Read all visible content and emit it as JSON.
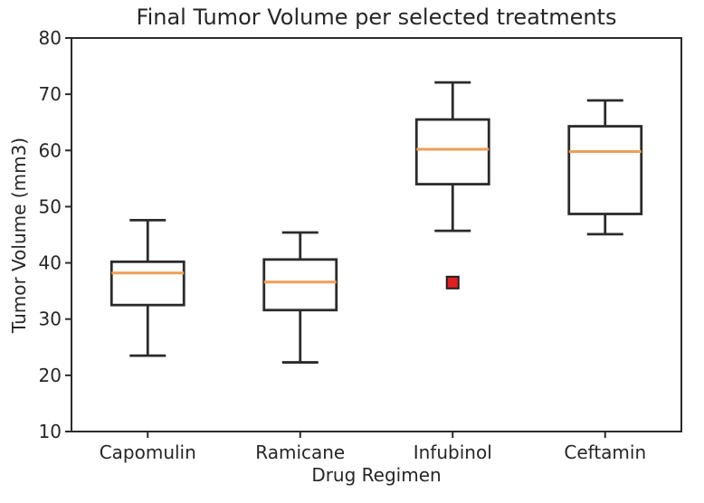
{
  "chart_data": {
    "type": "boxplot",
    "title": "Final Tumor Volume per selected treatments",
    "xlabel": "Drug Regimen",
    "ylabel": "Tumor Volume (mm3)",
    "categories": [
      "Capomulin",
      "Ramicane",
      "Infubinol",
      "Ceftamin"
    ],
    "ylim": [
      10,
      80
    ],
    "yticks": [
      10,
      20,
      30,
      40,
      50,
      60,
      70,
      80
    ],
    "grid": false,
    "legend": false,
    "series": [
      {
        "name": "Capomulin",
        "whisker_low": 23.5,
        "q1": 32.5,
        "median": 38.2,
        "q3": 40.2,
        "whisker_high": 47.6,
        "outliers": []
      },
      {
        "name": "Ramicane",
        "whisker_low": 22.3,
        "q1": 31.6,
        "median": 36.6,
        "q3": 40.6,
        "whisker_high": 45.4,
        "outliers": []
      },
      {
        "name": "Infubinol",
        "whisker_low": 45.7,
        "q1": 54.0,
        "median": 60.2,
        "q3": 65.5,
        "whisker_high": 72.1,
        "outliers": [
          36.5
        ]
      },
      {
        "name": "Ceftamin",
        "whisker_low": 45.1,
        "q1": 48.7,
        "median": 59.8,
        "q3": 64.3,
        "whisker_high": 68.9,
        "outliers": []
      }
    ],
    "colors": {
      "line": "#2b2b2b",
      "median": "#ef9f58",
      "outlier_fill": "#e02020",
      "outlier_edge": "#1f1f1f",
      "text": "#262626",
      "box_fill": "#ffffff",
      "background": "#ffffff"
    }
  }
}
